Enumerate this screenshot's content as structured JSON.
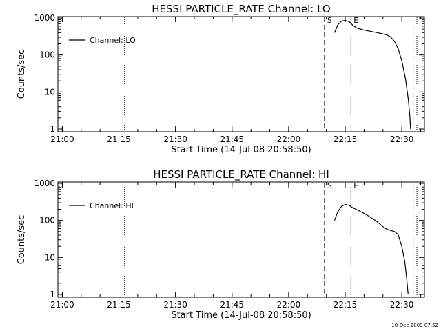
{
  "footer": {
    "timestamp": "10-Dec-2009 07:52"
  },
  "chart_data": [
    {
      "type": "line",
      "title": "HESSI PARTICLE_RATE Channel: LO",
      "xlabel": "Start Time (14-Jul-08 20:58:50)",
      "ylabel": "Counts/sec",
      "y_scale": "log",
      "ylim": [
        1,
        1000
      ],
      "x_ticks": [
        "21:00",
        "21:15",
        "21:30",
        "21:45",
        "22:00",
        "22:15",
        "22:30"
      ],
      "y_ticks": [
        "1",
        "10",
        "100",
        "1000"
      ],
      "legend": {
        "position": "top-left",
        "entries": [
          "Channel: LO"
        ]
      },
      "vlines": [
        {
          "time": "21:16:30",
          "style": "dotted"
        },
        {
          "time": "22:09:30",
          "style": "dashed",
          "label": "S"
        },
        {
          "time": "22:16:30",
          "style": "dotted",
          "label": "E"
        },
        {
          "time": "22:33:00",
          "style": "dashed"
        },
        {
          "time": "22:34:00",
          "style": "dotted"
        }
      ],
      "series": [
        {
          "name": "Channel: LO",
          "points": [
            [
              "22:12:10",
              400
            ],
            [
              "22:13:00",
              650
            ],
            [
              "22:14:00",
              820
            ],
            [
              "22:15:00",
              860
            ],
            [
              "22:16:00",
              800
            ],
            [
              "22:17:00",
              640
            ],
            [
              "22:18:00",
              540
            ],
            [
              "22:20:00",
              470
            ],
            [
              "22:22:00",
              430
            ],
            [
              "22:24:00",
              390
            ],
            [
              "22:26:00",
              350
            ],
            [
              "22:27:00",
              310
            ],
            [
              "22:28:00",
              240
            ],
            [
              "22:29:00",
              150
            ],
            [
              "22:30:00",
              70
            ],
            [
              "22:31:00",
              22
            ],
            [
              "22:31:45",
              6
            ],
            [
              "22:32:10",
              2
            ],
            [
              "22:32:20",
              1
            ]
          ]
        }
      ]
    },
    {
      "type": "line",
      "title": "HESSI PARTICLE_RATE Channel: HI",
      "xlabel": "Start Time (14-Jul-08 20:58:50)",
      "ylabel": "Counts/sec",
      "y_scale": "log",
      "ylim": [
        1,
        1000
      ],
      "x_ticks": [
        "21:00",
        "21:15",
        "21:30",
        "21:45",
        "22:00",
        "22:15",
        "22:30"
      ],
      "y_ticks": [
        "1",
        "10",
        "100",
        "1000"
      ],
      "legend": {
        "position": "top-left",
        "entries": [
          "Channel: HI"
        ]
      },
      "vlines": [
        {
          "time": "21:16:30",
          "style": "dotted"
        },
        {
          "time": "22:09:30",
          "style": "dashed",
          "label": "S"
        },
        {
          "time": "22:16:30",
          "style": "dotted",
          "label": "E"
        },
        {
          "time": "22:33:00",
          "style": "dashed"
        },
        {
          "time": "22:34:00",
          "style": "dotted"
        }
      ],
      "series": [
        {
          "name": "Channel: HI",
          "points": [
            [
              "22:12:10",
              100
            ],
            [
              "22:13:00",
              170
            ],
            [
              "22:14:00",
              240
            ],
            [
              "22:15:00",
              270
            ],
            [
              "22:16:00",
              255
            ],
            [
              "22:17:00",
              220
            ],
            [
              "22:19:00",
              175
            ],
            [
              "22:21:00",
              135
            ],
            [
              "22:23:00",
              100
            ],
            [
              "22:25:00",
              68
            ],
            [
              "22:26:00",
              58
            ],
            [
              "22:27:00",
              54
            ],
            [
              "22:28:00",
              50
            ],
            [
              "22:29:00",
              42
            ],
            [
              "22:30:00",
              20
            ],
            [
              "22:30:45",
              8
            ],
            [
              "22:31:15",
              3
            ],
            [
              "22:31:40",
              1
            ]
          ]
        }
      ]
    }
  ]
}
